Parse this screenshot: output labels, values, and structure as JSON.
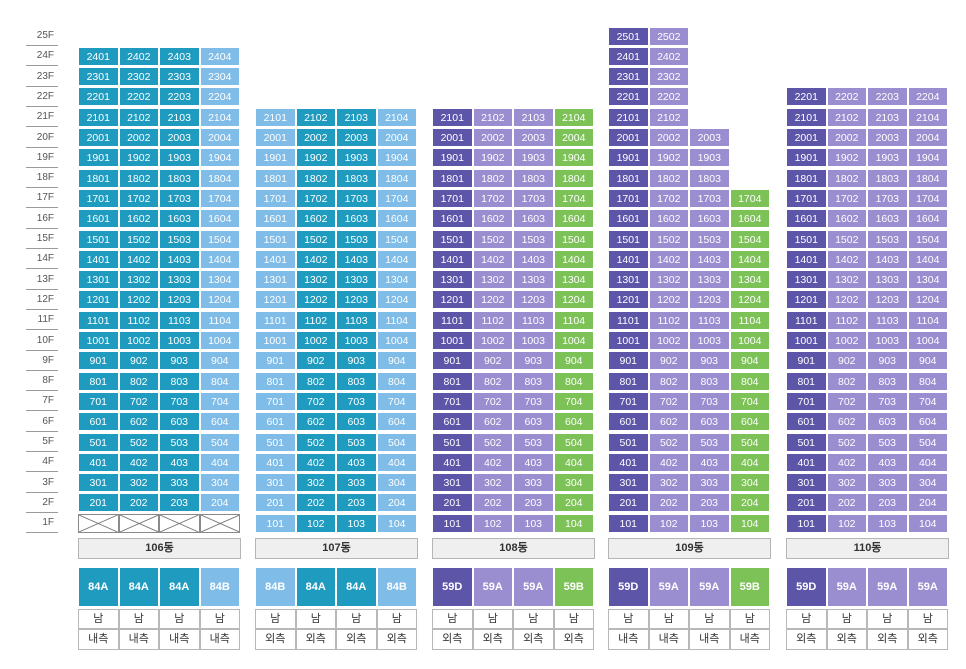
{
  "floors": [
    "25F",
    "24F",
    "23F",
    "22F",
    "21F",
    "20F",
    "19F",
    "18F",
    "17F",
    "16F",
    "15F",
    "14F",
    "13F",
    "12F",
    "11F",
    "10F",
    "9F",
    "8F",
    "7F",
    "6F",
    "5F",
    "4F",
    "3F",
    "2F",
    "1F"
  ],
  "colors": {
    "teal": "#1f9bbf",
    "light_blue": "#7fbce8",
    "dark_purple": "#5d55a8",
    "light_purple": "#9a8ed0",
    "green": "#7dc257"
  },
  "buildings": [
    {
      "name": "106동",
      "top_floors": [
        24,
        24,
        24,
        24
      ],
      "first_floor_empty": true,
      "line_colors": [
        "teal",
        "teal",
        "teal",
        "light_blue"
      ],
      "types": [
        "84A",
        "84A",
        "84A",
        "84B"
      ],
      "orientation": [
        "남",
        "남",
        "남",
        "남"
      ],
      "position": [
        "내측",
        "내측",
        "내측",
        "내측"
      ]
    },
    {
      "name": "107동",
      "top_floors": [
        21,
        21,
        21,
        21
      ],
      "first_floor_empty": false,
      "line_colors": [
        "light_blue",
        "teal",
        "teal",
        "light_blue"
      ],
      "types": [
        "84B",
        "84A",
        "84A",
        "84B"
      ],
      "orientation": [
        "남",
        "남",
        "남",
        "남"
      ],
      "position": [
        "외측",
        "외측",
        "외측",
        "외측"
      ]
    },
    {
      "name": "108동",
      "top_floors": [
        21,
        21,
        21,
        21
      ],
      "first_floor_empty": false,
      "line_colors": [
        "dark_purple",
        "light_purple",
        "light_purple",
        "green"
      ],
      "types": [
        "59D",
        "59A",
        "59A",
        "59B"
      ],
      "orientation": [
        "남",
        "남",
        "남",
        "남"
      ],
      "position": [
        "외측",
        "외측",
        "외측",
        "외측"
      ]
    },
    {
      "name": "109동",
      "top_floors": [
        25,
        25,
        20,
        17
      ],
      "first_floor_empty": false,
      "line_colors": [
        "dark_purple",
        "light_purple",
        "light_purple",
        "green"
      ],
      "types": [
        "59D",
        "59A",
        "59A",
        "59B"
      ],
      "orientation": [
        "남",
        "남",
        "남",
        "남"
      ],
      "position": [
        "내측",
        "내측",
        "내측",
        "내측"
      ]
    },
    {
      "name": "110동",
      "top_floors": [
        22,
        22,
        22,
        22
      ],
      "first_floor_empty": false,
      "line_colors": [
        "dark_purple",
        "light_purple",
        "light_purple",
        "light_purple"
      ],
      "types": [
        "59D",
        "59A",
        "59A",
        "59A"
      ],
      "orientation": [
        "남",
        "남",
        "남",
        "남"
      ],
      "position": [
        "외측",
        "외측",
        "외측",
        "외측"
      ]
    }
  ]
}
